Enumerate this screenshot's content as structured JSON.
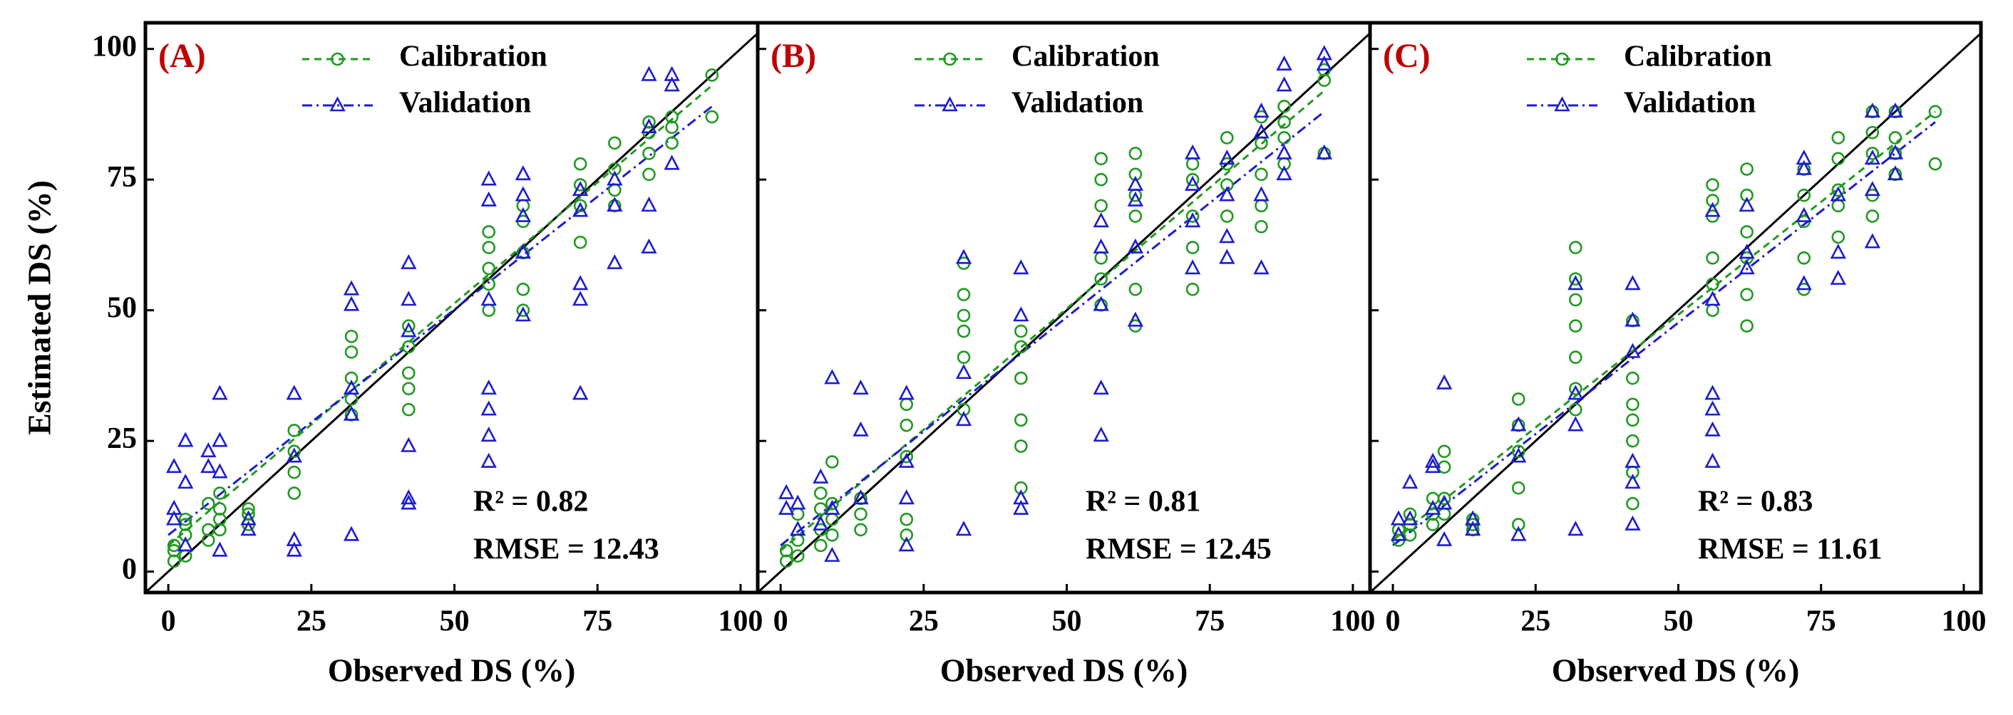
{
  "chart_data": [
    {
      "type": "scatter",
      "panel_label": "(A)",
      "xlabel": "Observed DS (%)",
      "ylabel": "Estimated DS (%)",
      "r2": "R² = 0.82",
      "rmse": "RMSE = 12.43",
      "xlim": [
        -4,
        103
      ],
      "ylim": [
        -4,
        105
      ],
      "xticks": [
        0,
        25,
        50,
        75,
        100
      ],
      "yticks": [
        0,
        25,
        50,
        75,
        100
      ],
      "series": [
        {
          "name": "Calibration",
          "color": "#1f9a1f",
          "marker": "circle",
          "dash": "10,7",
          "x": [
            1,
            1,
            1,
            3,
            3,
            3,
            3,
            7,
            7,
            7,
            9,
            9,
            9,
            9,
            14,
            14,
            14,
            22,
            22,
            22,
            22,
            32,
            32,
            32,
            32,
            32,
            42,
            42,
            42,
            42,
            42,
            56,
            56,
            56,
            56,
            56,
            62,
            62,
            62,
            62,
            62,
            72,
            72,
            72,
            72,
            78,
            78,
            78,
            78,
            84,
            84,
            84,
            84,
            88,
            88,
            88,
            95,
            95
          ],
          "values": [
            2,
            4,
            5,
            3,
            7,
            9,
            10,
            6,
            8,
            13,
            8,
            10,
            12,
            15,
            9,
            11,
            12,
            15,
            19,
            23,
            27,
            30,
            33,
            37,
            42,
            45,
            31,
            35,
            38,
            43,
            47,
            50,
            55,
            58,
            62,
            65,
            50,
            54,
            61,
            67,
            70,
            63,
            70,
            74,
            78,
            70,
            73,
            77,
            82,
            76,
            80,
            84,
            86,
            82,
            85,
            87,
            87,
            95
          ],
          "fit_x": [
            0,
            95
          ],
          "fit_y": [
            5,
            93
          ]
        },
        {
          "name": "Validation",
          "color": "#1c1cd0",
          "marker": "triangle",
          "dash": "14,6,3,6",
          "x": [
            1,
            1,
            1,
            3,
            3,
            3,
            7,
            7,
            9,
            9,
            9,
            9,
            14,
            14,
            22,
            22,
            22,
            22,
            32,
            32,
            32,
            32,
            32,
            42,
            42,
            42,
            42,
            42,
            42,
            56,
            56,
            56,
            56,
            56,
            56,
            56,
            62,
            62,
            62,
            62,
            62,
            72,
            72,
            72,
            72,
            72,
            78,
            78,
            78,
            84,
            84,
            84,
            84,
            88,
            88,
            88
          ],
          "values": [
            10,
            12,
            20,
            5,
            17,
            25,
            20,
            23,
            4,
            19,
            25,
            34,
            8,
            10,
            4,
            6,
            22,
            34,
            7,
            30,
            35,
            51,
            54,
            13,
            14,
            24,
            46,
            52,
            59,
            21,
            26,
            31,
            35,
            52,
            71,
            75,
            49,
            61,
            68,
            72,
            76,
            34,
            52,
            55,
            69,
            73,
            59,
            70,
            75,
            62,
            70,
            85,
            95,
            78,
            93,
            95
          ],
          "fit_x": [
            0,
            95
          ],
          "fit_y": [
            7,
            89
          ]
        }
      ]
    },
    {
      "type": "scatter",
      "panel_label": "(B)",
      "xlabel": "Observed DS (%)",
      "r2": "R² = 0.81",
      "rmse": "RMSE = 12.45",
      "xlim": [
        -4,
        103
      ],
      "ylim": [
        -4,
        105
      ],
      "xticks": [
        0,
        25,
        50,
        75,
        100
      ],
      "yticks": [
        0,
        25,
        50,
        75,
        100
      ],
      "series": [
        {
          "name": "Calibration",
          "color": "#1f9a1f",
          "marker": "circle",
          "dash": "10,7",
          "x": [
            1,
            1,
            3,
            3,
            3,
            7,
            7,
            7,
            7,
            9,
            9,
            9,
            9,
            14,
            14,
            14,
            22,
            22,
            22,
            22,
            22,
            32,
            32,
            32,
            32,
            32,
            32,
            42,
            42,
            42,
            42,
            42,
            42,
            56,
            56,
            56,
            56,
            56,
            56,
            62,
            62,
            62,
            62,
            62,
            62,
            72,
            72,
            72,
            72,
            72,
            78,
            78,
            78,
            78,
            84,
            84,
            84,
            84,
            84,
            88,
            88,
            88,
            88,
            95,
            95,
            95
          ],
          "values": [
            2,
            4,
            3,
            6,
            11,
            5,
            8,
            12,
            15,
            7,
            10,
            13,
            21,
            8,
            11,
            14,
            7,
            10,
            22,
            28,
            32,
            31,
            41,
            46,
            49,
            53,
            59,
            16,
            24,
            29,
            37,
            43,
            46,
            51,
            56,
            60,
            70,
            75,
            79,
            47,
            54,
            68,
            72,
            76,
            80,
            54,
            62,
            68,
            75,
            78,
            68,
            74,
            78,
            83,
            66,
            70,
            76,
            82,
            87,
            78,
            83,
            86,
            89,
            80,
            94,
            96
          ],
          "fit_x": [
            0,
            95
          ],
          "fit_y": [
            4,
            92
          ]
        },
        {
          "name": "Validation",
          "color": "#1c1cd0",
          "marker": "triangle",
          "dash": "14,6,3,6",
          "x": [
            1,
            1,
            3,
            3,
            7,
            7,
            9,
            9,
            9,
            14,
            14,
            14,
            22,
            22,
            22,
            22,
            32,
            32,
            32,
            32,
            42,
            42,
            42,
            42,
            56,
            56,
            56,
            56,
            56,
            62,
            62,
            62,
            62,
            72,
            72,
            72,
            72,
            78,
            78,
            78,
            78,
            84,
            84,
            84,
            84,
            88,
            88,
            88,
            88,
            95,
            95,
            95
          ],
          "values": [
            12,
            15,
            8,
            13,
            9,
            18,
            3,
            12,
            37,
            14,
            27,
            35,
            5,
            14,
            21,
            34,
            8,
            29,
            38,
            60,
            12,
            14,
            49,
            58,
            26,
            35,
            51,
            62,
            67,
            48,
            62,
            71,
            74,
            58,
            67,
            74,
            80,
            60,
            64,
            72,
            79,
            58,
            72,
            84,
            88,
            76,
            80,
            93,
            97,
            80,
            97,
            99
          ],
          "fit_x": [
            0,
            95
          ],
          "fit_y": [
            5,
            88
          ]
        }
      ]
    },
    {
      "type": "scatter",
      "panel_label": "(C)",
      "xlabel": "Observed DS (%)",
      "r2": "R² = 0.83",
      "rmse": "RMSE = 11.61",
      "xlim": [
        -4,
        103
      ],
      "ylim": [
        -4,
        105
      ],
      "xticks": [
        0,
        25,
        50,
        75,
        100
      ],
      "yticks": [
        0,
        25,
        50,
        75,
        100
      ],
      "series": [
        {
          "name": "Calibration",
          "color": "#1f9a1f",
          "marker": "circle",
          "dash": "10,7",
          "x": [
            1,
            1,
            3,
            3,
            3,
            7,
            7,
            7,
            9,
            9,
            9,
            9,
            14,
            14,
            14,
            22,
            22,
            22,
            22,
            22,
            32,
            32,
            32,
            32,
            32,
            32,
            32,
            42,
            42,
            42,
            42,
            42,
            42,
            42,
            56,
            56,
            56,
            56,
            56,
            56,
            62,
            62,
            62,
            62,
            62,
            62,
            72,
            72,
            72,
            72,
            72,
            78,
            78,
            78,
            78,
            78,
            84,
            84,
            84,
            84,
            84,
            88,
            88,
            88,
            88,
            95,
            95
          ],
          "values": [
            6,
            8,
            7,
            9,
            11,
            9,
            11,
            14,
            11,
            14,
            20,
            23,
            8,
            9,
            10,
            9,
            16,
            23,
            28,
            33,
            31,
            35,
            41,
            47,
            52,
            56,
            62,
            13,
            19,
            25,
            29,
            32,
            37,
            48,
            50,
            55,
            60,
            68,
            71,
            74,
            47,
            53,
            60,
            65,
            72,
            77,
            54,
            60,
            67,
            72,
            77,
            64,
            70,
            73,
            79,
            83,
            68,
            72,
            80,
            84,
            88,
            76,
            80,
            83,
            88,
            78,
            88
          ],
          "fit_x": [
            0,
            95
          ],
          "fit_y": [
            6,
            88
          ]
        },
        {
          "name": "Validation",
          "color": "#1c1cd0",
          "marker": "triangle",
          "dash": "14,6,3,6",
          "x": [
            1,
            1,
            3,
            3,
            7,
            7,
            7,
            9,
            9,
            9,
            14,
            14,
            22,
            22,
            22,
            32,
            32,
            32,
            32,
            42,
            42,
            42,
            42,
            42,
            42,
            56,
            56,
            56,
            56,
            56,
            56,
            62,
            62,
            62,
            72,
            72,
            72,
            72,
            78,
            78,
            78,
            84,
            84,
            84,
            84,
            88,
            88,
            88
          ],
          "values": [
            7,
            10,
            10,
            17,
            12,
            20,
            21,
            6,
            13,
            36,
            8,
            10,
            7,
            22,
            28,
            8,
            28,
            34,
            55,
            9,
            17,
            21,
            42,
            48,
            55,
            21,
            27,
            31,
            34,
            52,
            69,
            58,
            61,
            70,
            55,
            68,
            77,
            79,
            56,
            61,
            72,
            63,
            73,
            79,
            88,
            76,
            80,
            88
          ],
          "fit_x": [
            0,
            95
          ],
          "fit_y": [
            5,
            86
          ]
        }
      ]
    }
  ]
}
